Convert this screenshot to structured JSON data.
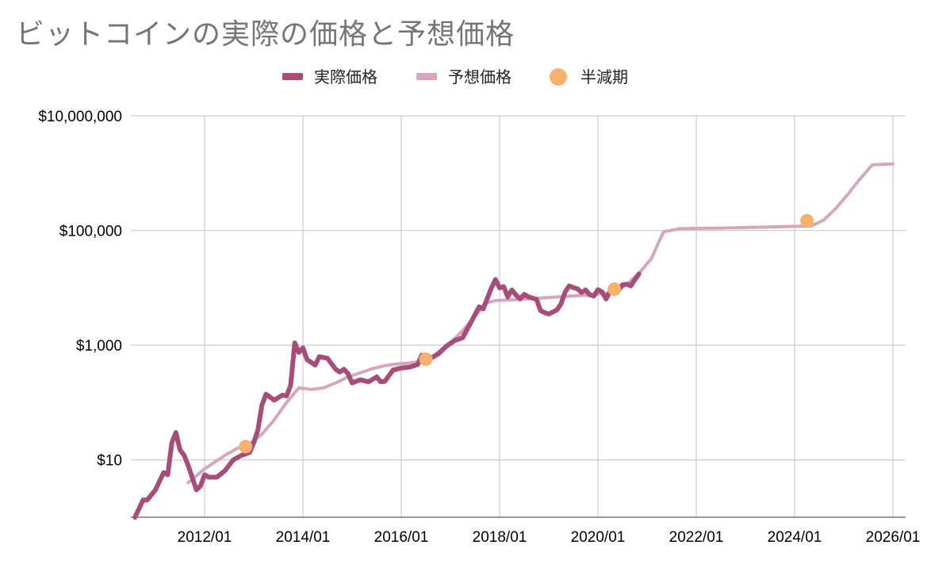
{
  "chart_data": {
    "type": "line",
    "title": "ビットコインの実際の価格と予想価格",
    "xlabel": "",
    "ylabel": "",
    "y_scale": "log",
    "ylim": [
      1,
      10000000
    ],
    "xlim": [
      "2010/07",
      "2026/01"
    ],
    "grid": true,
    "legend_position": "top",
    "x_ticks": [
      "2012/01",
      "2014/01",
      "2016/01",
      "2018/01",
      "2020/01",
      "2022/01",
      "2024/01",
      "2026/01"
    ],
    "y_ticks": [
      {
        "value": 10,
        "label": "$10"
      },
      {
        "value": 1000,
        "label": "$1,000"
      },
      {
        "value": 100000,
        "label": "$100,000"
      },
      {
        "value": 10000000,
        "label": "$10,000,000"
      }
    ],
    "colors": {
      "actual": "#a64d79",
      "predicted": "#d5a6bd",
      "halving": "#f6b26b",
      "grid": "#cccccc"
    },
    "series": [
      {
        "name": "実際価格",
        "key": "actual",
        "points": [
          [
            "2010/08",
            1
          ],
          [
            "2010/10",
            2
          ],
          [
            "2010/11",
            2
          ],
          [
            "2011/01",
            3
          ],
          [
            "2011/03",
            6
          ],
          [
            "2011/04",
            5.5
          ],
          [
            "2011/05",
            20
          ],
          [
            "2011/06",
            30
          ],
          [
            "2011/07",
            15
          ],
          [
            "2011/08",
            12
          ],
          [
            "2011/09",
            8
          ],
          [
            "2011/11",
            3
          ],
          [
            "2011/12",
            3.5
          ],
          [
            "2012/01",
            5.5
          ],
          [
            "2012/02",
            5
          ],
          [
            "2012/04",
            5
          ],
          [
            "2012/06",
            6.5
          ],
          [
            "2012/08",
            10
          ],
          [
            "2012/10",
            12
          ],
          [
            "2012/12",
            13.5
          ],
          [
            "2013/01",
            20
          ],
          [
            "2013/02",
            33
          ],
          [
            "2013/03",
            90
          ],
          [
            "2013/04",
            140
          ],
          [
            "2013/06",
            110
          ],
          [
            "2013/08",
            135
          ],
          [
            "2013/09",
            130
          ],
          [
            "2013/10",
            200
          ],
          [
            "2013/11",
            1100
          ],
          [
            "2013/12",
            750
          ],
          [
            "2014/01",
            900
          ],
          [
            "2014/02",
            560
          ],
          [
            "2014/04",
            450
          ],
          [
            "2014/05",
            630
          ],
          [
            "2014/07",
            590
          ],
          [
            "2014/09",
            380
          ],
          [
            "2014/10",
            340
          ],
          [
            "2014/11",
            380
          ],
          [
            "2014/12",
            320
          ],
          [
            "2015/01",
            220
          ],
          [
            "2015/03",
            250
          ],
          [
            "2015/05",
            230
          ],
          [
            "2015/07",
            280
          ],
          [
            "2015/08",
            230
          ],
          [
            "2015/09",
            235
          ],
          [
            "2015/11",
            370
          ],
          [
            "2016/01",
            400
          ],
          [
            "2016/03",
            415
          ],
          [
            "2016/05",
            460
          ],
          [
            "2016/06",
            670
          ],
          [
            "2016/08",
            580
          ],
          [
            "2016/10",
            700
          ],
          [
            "2016/12",
            960
          ],
          [
            "2017/02",
            1200
          ],
          [
            "2017/04",
            1350
          ],
          [
            "2017/06",
            2500
          ],
          [
            "2017/08",
            4700
          ],
          [
            "2017/09",
            4300
          ],
          [
            "2017/11",
            10000
          ],
          [
            "2017/12",
            14000
          ],
          [
            "2018/01",
            10000
          ],
          [
            "2018/02",
            10500
          ],
          [
            "2018/03",
            7000
          ],
          [
            "2018/04",
            9200
          ],
          [
            "2018/05",
            7500
          ],
          [
            "2018/06",
            6400
          ],
          [
            "2018/07",
            7700
          ],
          [
            "2018/08",
            7000
          ],
          [
            "2018/10",
            6300
          ],
          [
            "2018/11",
            4000
          ],
          [
            "2018/12",
            3700
          ],
          [
            "2019/01",
            3500
          ],
          [
            "2019/03",
            4100
          ],
          [
            "2019/04",
            5300
          ],
          [
            "2019/05",
            8500
          ],
          [
            "2019/06",
            10800
          ],
          [
            "2019/07",
            10100
          ],
          [
            "2019/08",
            9600
          ],
          [
            "2019/09",
            8300
          ],
          [
            "2019/10",
            9200
          ],
          [
            "2019/11",
            7600
          ],
          [
            "2019/12",
            7200
          ],
          [
            "2020/01",
            9300
          ],
          [
            "2020/02",
            8500
          ],
          [
            "2020/03",
            6400
          ],
          [
            "2020/04",
            8800
          ],
          [
            "2020/05",
            9500
          ],
          [
            "2020/06",
            9100
          ],
          [
            "2020/07",
            11300
          ],
          [
            "2020/08",
            11600
          ],
          [
            "2020/09",
            10800
          ],
          [
            "2020/10",
            13800
          ],
          [
            "2020/11",
            17500
          ]
        ]
      },
      {
        "name": "予想価格",
        "key": "predicted",
        "points": [
          [
            "2011/09",
            4
          ],
          [
            "2012/01",
            7
          ],
          [
            "2012/06",
            12
          ],
          [
            "2012/09",
            16
          ],
          [
            "2012/12",
            19
          ],
          [
            "2013/03",
            28
          ],
          [
            "2013/06",
            50
          ],
          [
            "2013/09",
            100
          ],
          [
            "2013/12",
            180
          ],
          [
            "2014/03",
            170
          ],
          [
            "2014/06",
            180
          ],
          [
            "2014/09",
            220
          ],
          [
            "2014/12",
            280
          ],
          [
            "2015/03",
            330
          ],
          [
            "2015/06",
            390
          ],
          [
            "2015/09",
            440
          ],
          [
            "2015/12",
            470
          ],
          [
            "2016/03",
            490
          ],
          [
            "2016/07",
            530
          ],
          [
            "2016/10",
            750
          ],
          [
            "2017/01",
            1100
          ],
          [
            "2017/04",
            1800
          ],
          [
            "2017/07",
            3200
          ],
          [
            "2017/10",
            5500
          ],
          [
            "2017/12",
            6000
          ],
          [
            "2018/06",
            6300
          ],
          [
            "2018/12",
            6700
          ],
          [
            "2019/06",
            7200
          ],
          [
            "2019/12",
            7600
          ],
          [
            "2020/05",
            8400
          ],
          [
            "2020/08",
            11500
          ],
          [
            "2020/11",
            18000
          ],
          [
            "2021/02",
            32000
          ],
          [
            "2021/05",
            95000
          ],
          [
            "2021/09",
            108000
          ],
          [
            "2022/06",
            110000
          ],
          [
            "2023/06",
            115000
          ],
          [
            "2024/05",
            120000
          ],
          [
            "2024/08",
            150000
          ],
          [
            "2024/11",
            240000
          ],
          [
            "2025/02",
            430000
          ],
          [
            "2025/05",
            800000
          ],
          [
            "2025/08",
            1400000
          ],
          [
            "2026/01",
            1450000
          ]
        ]
      },
      {
        "name": "半減期",
        "key": "halving",
        "points": [
          [
            "2012/11",
            17
          ],
          [
            "2016/07",
            570
          ],
          [
            "2020/05",
            9500
          ],
          [
            "2024/04",
            148000
          ]
        ]
      }
    ]
  }
}
